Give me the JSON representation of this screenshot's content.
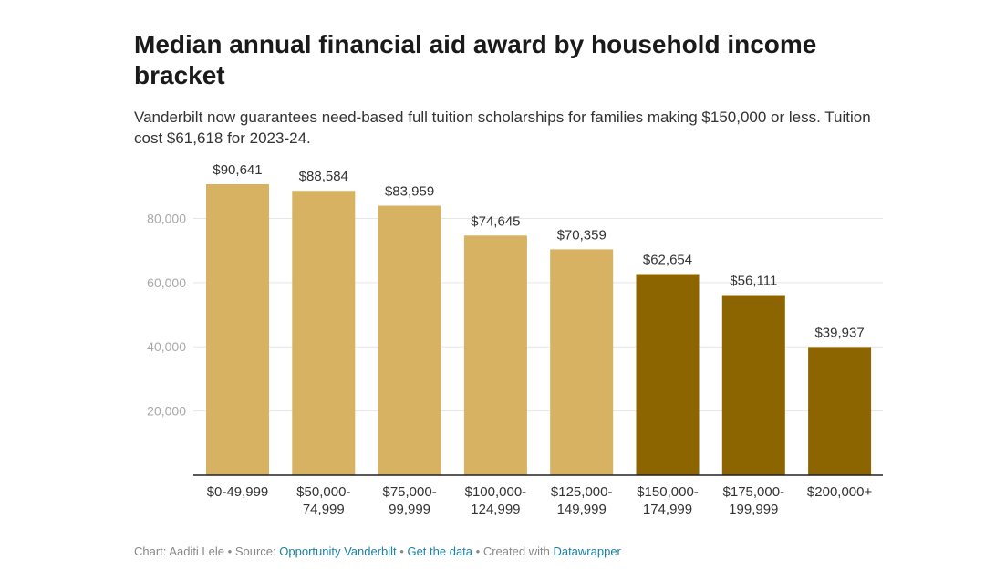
{
  "title": "Median annual financial aid award by household income bracket",
  "subtitle": "Vanderbilt now guarantees need-based full tuition scholarships for families making $150,000 or less. Tuition cost $61,618 for 2023-24.",
  "colors": {
    "light_bar": "#d6b262",
    "dark_bar": "#8c6400",
    "gridline": "#e6e6e6",
    "axis": "#222222",
    "tick_label": "#a8a8a8",
    "link": "#1d81a2"
  },
  "chart_data": {
    "type": "bar",
    "categories": [
      [
        "$0-49,999"
      ],
      [
        "$50,000-",
        "74,999"
      ],
      [
        "$75,000-",
        "99,999"
      ],
      [
        "$100,000-",
        "124,999"
      ],
      [
        "$125,000-",
        "149,999"
      ],
      [
        "$150,000-",
        "174,999"
      ],
      [
        "$175,000-",
        "199,999"
      ],
      [
        "$200,000+"
      ]
    ],
    "values": [
      90641,
      88584,
      83959,
      74645,
      70359,
      62654,
      56111,
      39937
    ],
    "value_labels": [
      "$90,641",
      "$88,584",
      "$83,959",
      "$74,645",
      "$70,359",
      "$62,654",
      "$56,111",
      "$39,937"
    ],
    "highlight": [
      false,
      false,
      false,
      false,
      false,
      true,
      true,
      true
    ],
    "yticks": [
      20000,
      40000,
      60000,
      80000
    ],
    "ytick_labels": [
      "20,000",
      "40,000",
      "60,000",
      "80,000"
    ],
    "ylim": [
      0,
      90641
    ],
    "xlabel": "",
    "ylabel": ""
  },
  "footer": {
    "chart_credit": "Chart: Aaditi Lele",
    "source_prefix": "Source:",
    "source_link": "Opportunity Vanderbilt",
    "data_link": "Get the data",
    "created_prefix": "Created with",
    "tool_link": "Datawrapper",
    "separator": "•"
  }
}
